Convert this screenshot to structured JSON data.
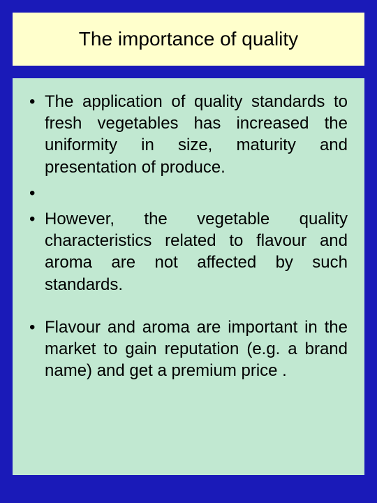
{
  "slide": {
    "title": "The importance of quality",
    "background_color": "#1a1ab8",
    "title_box": {
      "background_color": "#ffffcc",
      "title_fontsize": 28,
      "title_color": "#000000"
    },
    "content_box": {
      "background_color": "#c1e8d1",
      "text_fontsize": 24,
      "text_color": "#000000"
    },
    "bullets": [
      "The application of quality standards to fresh vegetables has increased the uniformity in size, maturity and presentation of produce.",
      "",
      "However, the vegetable quality characteristics related to flavour and aroma are not affected by such standards.",
      "Flavour and aroma are important in the market to gain reputation (e.g. a brand name) and get a premium price ."
    ]
  }
}
